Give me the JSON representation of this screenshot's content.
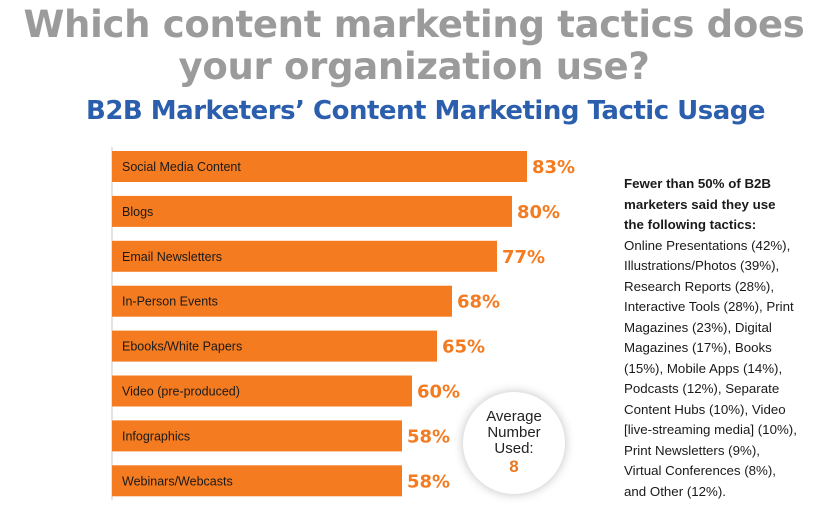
{
  "headline": [
    "Which content marketing tactics does",
    "your organization use?"
  ],
  "chart_data": {
    "type": "bar",
    "orientation": "horizontal",
    "title": "B2B Marketers’ Content Marketing Tactic Usage",
    "categories": [
      "Social Media Content",
      "Blogs",
      "Email Newsletters",
      "In-Person Events",
      "Ebooks/White Papers",
      "Video (pre-produced)",
      "Infographics",
      "Webinars/Webcasts"
    ],
    "values": [
      83,
      80,
      77,
      68,
      65,
      60,
      58,
      58
    ],
    "value_labels": [
      "83%",
      "80%",
      "77%",
      "68%",
      "65%",
      "60%",
      "58%",
      "58%"
    ],
    "unit": "%",
    "bar_color": "#f47b20",
    "value_label_color": "#f47b20",
    "grid": false
  },
  "badge": {
    "lines": [
      "Average",
      "Number",
      "Used:"
    ],
    "value": "8"
  },
  "note": {
    "heading_lines": [
      "Fewer than 50% of B2B",
      "marketers said they use",
      "the following tactics:"
    ],
    "body_lines": [
      "Online Presentations (42%),",
      "Illustrations/Photos (39%),",
      "Research Reports (28%),",
      "Interactive Tools (28%), Print",
      "Magazines (23%), Digital",
      "Magazines (17%), Books",
      "(15%), Mobile Apps (14%),",
      "Podcasts (12%), Separate",
      "Content Hubs (10%), Video",
      "[live-streaming media] (10%),",
      "Print Newsletters (9%),",
      "Virtual Conferences (8%),",
      "and Other (12%)."
    ]
  }
}
